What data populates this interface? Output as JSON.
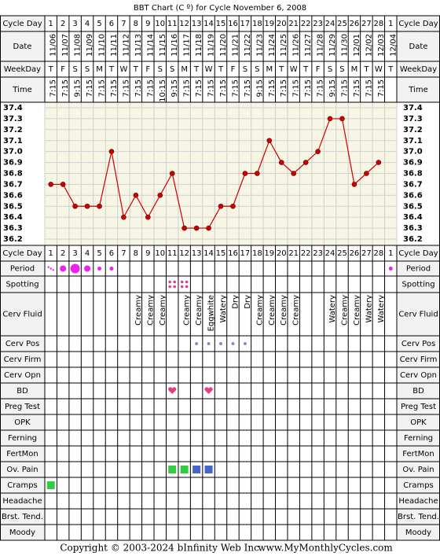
{
  "title": "BBT Chart (C º) for Cycle November 6, 2008",
  "header_rows": [
    "Cycle Day",
    "Date",
    "WeekDay",
    "Time"
  ],
  "chart_data": {
    "type": "line",
    "categories": [
      1,
      2,
      3,
      4,
      5,
      6,
      7,
      8,
      9,
      10,
      11,
      12,
      13,
      14,
      15,
      16,
      17,
      18,
      19,
      20,
      21,
      22,
      23,
      24,
      25,
      26,
      27,
      28,
      1
    ],
    "values": [
      36.7,
      36.7,
      36.5,
      36.5,
      36.5,
      37.0,
      36.4,
      36.6,
      36.4,
      36.6,
      36.8,
      36.3,
      36.3,
      36.3,
      36.5,
      36.5,
      36.8,
      36.8,
      37.1,
      36.9,
      36.8,
      36.9,
      37.0,
      37.3,
      37.3,
      36.7,
      36.8,
      36.9,
      null
    ],
    "color": "#cc0000",
    "ylim": [
      36.2,
      37.4
    ],
    "yticks": [
      36.2,
      36.3,
      36.4,
      36.5,
      36.6,
      36.7,
      36.8,
      36.9,
      {
        "value": 37,
        "label": "37.0"
      },
      37.1,
      37.2,
      37.3,
      37.4
    ],
    "grid": true
  },
  "dates": [
    "11/06",
    "11/07",
    "11/08",
    "11/09",
    "11/10",
    "11/11",
    "11/12",
    "11/13",
    "11/14",
    "11/15",
    "11/16",
    "11/17",
    "11/18",
    "11/19",
    "11/20",
    "11/21",
    "11/22",
    "11/23",
    "11/24",
    "11/25",
    "11/26",
    "11/27",
    "11/28",
    "11/29",
    "11/30",
    "12/01",
    "12/02",
    "12/03",
    "12/04"
  ],
  "weekdays": [
    "T",
    "F",
    "S",
    "S",
    "M",
    "T",
    "W",
    "T",
    "F",
    "S",
    "S",
    "M",
    "T",
    "W",
    "T",
    "F",
    "S",
    "S",
    "M",
    "T",
    "W",
    "T",
    "F",
    "S",
    "S",
    "M",
    "T",
    "W",
    "T"
  ],
  "times": [
    "7:15",
    "7:15",
    "9:15",
    "7:15",
    "7:15",
    "7:15",
    "7:15",
    "7:15",
    "7:15",
    "10:15",
    "9:15",
    "7:15",
    "7:15",
    "7:15",
    "7:15",
    "7:15",
    "7:15",
    "9:15",
    "7:15",
    "7:15",
    "7:15",
    "7:15",
    "7:15",
    "9:15",
    "7:15",
    "7:15",
    "7:15",
    "7:15",
    null
  ],
  "rows": [
    "Period",
    "Spotting",
    "Cerv Fluid",
    "Cerv Pos",
    "Cerv Firm",
    "Cerv Opn",
    "BD",
    "Preg Test",
    "OPK",
    "Ferning",
    "FertMon",
    "Ov. Pain",
    "Cramps",
    "Headache",
    "Brst. Tend.",
    "Moody"
  ],
  "cerv_fluid": [
    null,
    null,
    null,
    null,
    null,
    null,
    null,
    "Creamy",
    "Creamy",
    "Creamy",
    null,
    "Creamy",
    "Creamy",
    "Eggwhite",
    "Watery",
    "Dry",
    "Dry",
    "Creamy",
    "Creamy",
    "Creamy",
    "Creamy",
    null,
    null,
    "Watery",
    "Creamy",
    "Creamy",
    "Watery",
    "Watery",
    null
  ],
  "footer": {
    "copyright": "Copyright © 2003-2024 bInfinity Web Inc.",
    "site": "www.MyMonthlyCycles.com"
  }
}
